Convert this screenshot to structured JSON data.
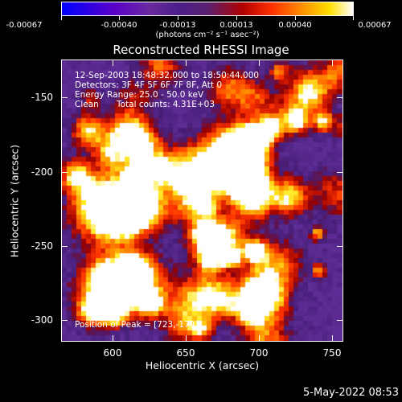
{
  "colorbar": {
    "labels": [
      "-0.00067",
      "-0.00040",
      "-0.00013",
      "0.00013",
      "0.00040",
      "0.00067"
    ],
    "units": "(photons cm⁻² s⁻¹ asec⁻²)"
  },
  "title": "Reconstructed RHESSI Image",
  "info": {
    "time": "12-Sep-2003 18:48:32.000 to 18:50:44.000",
    "detectors": "Detectors: 3F 4F 5F 6F 7F 8F, Att 0",
    "energy": "Energy Range: 25.0 - 50.0 keV",
    "method": "Clean",
    "counts": "Total counts: 4.31E+03"
  },
  "peak": "Position of Peak = [723,-179]",
  "axes": {
    "xlabel": "Heliocentric X (arcsec)",
    "ylabel": "Heliocentric Y (arcsec)",
    "xticks": [
      "600",
      "650",
      "700",
      "750"
    ],
    "yticks": [
      "-150",
      "-200",
      "-250",
      "-300"
    ]
  },
  "timestamp": "5-May-2022 08:53"
}
